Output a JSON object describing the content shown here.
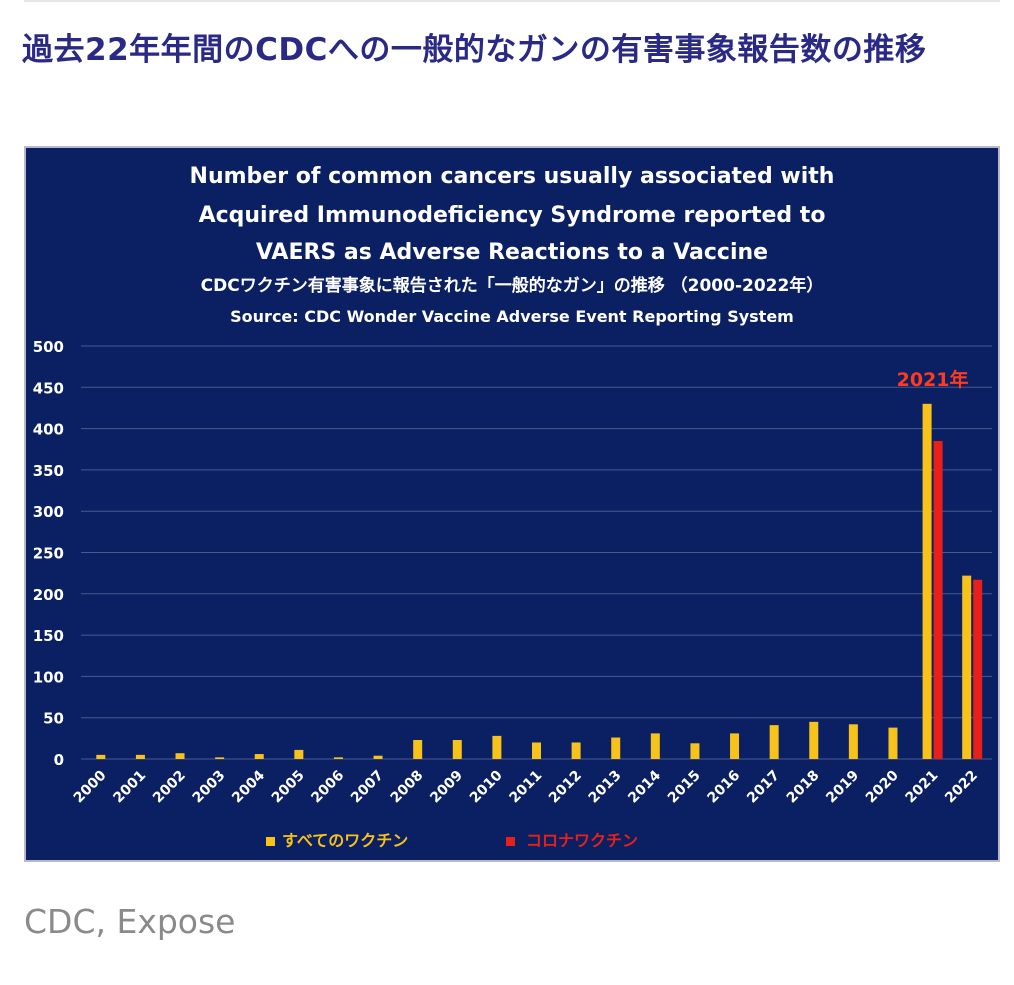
{
  "article": {
    "heading": "過去22年年間のCDCへの一般的なガンの有害事象報告数の推移",
    "caption": "CDC, Expose"
  },
  "colors": {
    "background": "#0b1f63",
    "all_vaccines": "#f7c21a",
    "covid_vaccines": "#e8201a",
    "annotation": "#ff3b1f",
    "heading": "#2a2a86"
  },
  "chart_data": {
    "type": "bar",
    "title_lines": [
      "Number of common cancers usually associated with",
      "Acquired Immunodeficiency Syndrome reported to",
      "VAERS as Adverse Reactions to a Vaccine"
    ],
    "subtitle": "CDCワクチン有害事象に報告された「一般的なガン」の推移 （2000-2022年）",
    "source": "Source: CDC Wonder Vaccine Adverse Event Reporting System",
    "categories": [
      "2000",
      "2001",
      "2002",
      "2003",
      "2004",
      "2005",
      "2006",
      "2007",
      "2008",
      "2009",
      "2010",
      "2011",
      "2012",
      "2013",
      "2014",
      "2015",
      "2016",
      "2017",
      "2018",
      "2019",
      "2020",
      "2021",
      "2022"
    ],
    "series": [
      {
        "name": "すべてのワクチン",
        "color": "#f7c21a",
        "values": [
          5,
          5,
          7,
          2,
          6,
          11,
          2,
          4,
          23,
          23,
          28,
          20,
          20,
          26,
          31,
          19,
          31,
          41,
          45,
          42,
          38,
          430,
          222
        ]
      },
      {
        "name": "コロナワクチン",
        "color": "#e8201a",
        "values": [
          null,
          null,
          null,
          null,
          null,
          null,
          null,
          null,
          null,
          null,
          null,
          null,
          null,
          null,
          null,
          null,
          null,
          null,
          null,
          null,
          null,
          385,
          217
        ]
      }
    ],
    "ylim": [
      0,
      500
    ],
    "yticks": [
      0,
      50,
      100,
      150,
      200,
      250,
      300,
      350,
      400,
      450,
      500
    ],
    "grid": true,
    "annotation": {
      "text": "2021年",
      "category": "2021"
    },
    "legend_position": "bottom"
  }
}
